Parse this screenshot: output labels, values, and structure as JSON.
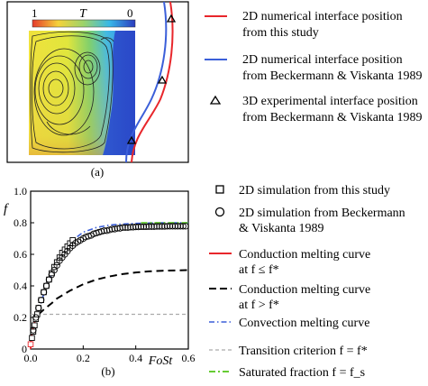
{
  "panel_a": {
    "label": "(a)",
    "colorbar": {
      "left_label": "1",
      "center_label": "T",
      "right_label": "0"
    },
    "legend": [
      {
        "text": [
          "2D numerical interface position",
          "from this study"
        ],
        "color": "#e8262b",
        "marker": "line"
      },
      {
        "text": [
          "2D numerical interface position",
          "from Beckermann & Viskanta 1989"
        ],
        "color": "#3b5fd9",
        "marker": "line"
      },
      {
        "text": [
          "3D  experimental interface position",
          "from Beckermann & Viskanta 1989"
        ],
        "color": "#000000",
        "marker": "triangle"
      }
    ]
  },
  "panel_b": {
    "label": "(b)",
    "legend": [
      {
        "text": [
          "2D simulation from this study"
        ],
        "marker": "square"
      },
      {
        "text": [
          "2D simulation from Beckermann",
          "& Viskanta 1989"
        ],
        "marker": "circle"
      },
      {
        "text": [
          "Conduction melting curve",
          "at  f ≤ f*"
        ],
        "marker": "red-line"
      },
      {
        "text": [
          "Conduction melting curve",
          "at  f > f*"
        ],
        "marker": "black-dash"
      },
      {
        "text": [
          "Convection melting curve"
        ],
        "marker": "blue-dashdot"
      },
      {
        "text": [
          "Transition criterion  f = f*"
        ],
        "marker": "gray-dash"
      },
      {
        "text": [
          "Saturated fraction  f = f_s"
        ],
        "marker": "green-dashdot"
      }
    ]
  },
  "chart_data": {
    "type": "line",
    "xlabel": "FoSt",
    "ylabel": "f",
    "xlim": [
      0,
      0.6
    ],
    "ylim": [
      0,
      1.0
    ],
    "xticks": [
      "0.0",
      "0.2",
      "0.4",
      "0.6"
    ],
    "yticks": [
      "0",
      "0.2",
      "0.4",
      "0.6",
      "0.8",
      "1.0"
    ],
    "grid": false,
    "transition_f": 0.22,
    "saturated_f": 0.8,
    "series": [
      {
        "name": "2D simulation from this study",
        "style": "square",
        "color": "#000000",
        "x": [
          0.0,
          0.005,
          0.01,
          0.015,
          0.02,
          0.025,
          0.03,
          0.04,
          0.05,
          0.06,
          0.07,
          0.08,
          0.09,
          0.1,
          0.11,
          0.12,
          0.13,
          0.14,
          0.15,
          0.16
        ],
        "y": [
          0.03,
          0.07,
          0.11,
          0.15,
          0.19,
          0.22,
          0.26,
          0.31,
          0.36,
          0.4,
          0.44,
          0.48,
          0.52,
          0.55,
          0.58,
          0.61,
          0.63,
          0.65,
          0.67,
          0.69
        ]
      },
      {
        "name": "2D simulation from Beckermann & Viskanta 1989",
        "style": "circle",
        "color": "#000000",
        "x": [
          0.01,
          0.02,
          0.03,
          0.04,
          0.05,
          0.06,
          0.07,
          0.08,
          0.09,
          0.1,
          0.11,
          0.12,
          0.13,
          0.14,
          0.15,
          0.16,
          0.17,
          0.18,
          0.19,
          0.2,
          0.21,
          0.22,
          0.23,
          0.24,
          0.25,
          0.26,
          0.27,
          0.28,
          0.29,
          0.3,
          0.31,
          0.32,
          0.33,
          0.34,
          0.35,
          0.36,
          0.37,
          0.38,
          0.39,
          0.4,
          0.41,
          0.42,
          0.43,
          0.44,
          0.45,
          0.46,
          0.47,
          0.48,
          0.49,
          0.5,
          0.51,
          0.52,
          0.53,
          0.54,
          0.55,
          0.56,
          0.57,
          0.58,
          0.59
        ],
        "y": [
          0.12,
          0.2,
          0.26,
          0.31,
          0.36,
          0.4,
          0.44,
          0.47,
          0.5,
          0.53,
          0.56,
          0.58,
          0.6,
          0.62,
          0.64,
          0.655,
          0.67,
          0.68,
          0.69,
          0.7,
          0.71,
          0.715,
          0.72,
          0.73,
          0.735,
          0.74,
          0.745,
          0.75,
          0.75,
          0.755,
          0.76,
          0.76,
          0.765,
          0.765,
          0.77,
          0.77,
          0.77,
          0.772,
          0.772,
          0.774,
          0.774,
          0.775,
          0.775,
          0.775,
          0.776,
          0.776,
          0.776,
          0.777,
          0.777,
          0.777,
          0.777,
          0.778,
          0.778,
          0.778,
          0.778,
          0.778,
          0.778,
          0.778,
          0.778
        ]
      },
      {
        "name": "Conduction melting curve at f ≤ f*",
        "style": "solid",
        "color": "#e8262b",
        "x": [
          0.0,
          0.002,
          0.005,
          0.01,
          0.015,
          0.02,
          0.025,
          0.03
        ],
        "y": [
          0.0,
          0.06,
          0.1,
          0.14,
          0.17,
          0.195,
          0.21,
          0.22
        ]
      },
      {
        "name": "Conduction melting curve at f > f*",
        "style": "dash",
        "color": "#000000",
        "x": [
          0.03,
          0.05,
          0.08,
          0.1,
          0.15,
          0.2,
          0.25,
          0.3,
          0.35,
          0.4,
          0.45,
          0.5,
          0.55,
          0.6
        ],
        "y": [
          0.22,
          0.25,
          0.29,
          0.32,
          0.37,
          0.41,
          0.44,
          0.46,
          0.475,
          0.485,
          0.492,
          0.496,
          0.498,
          0.5
        ]
      },
      {
        "name": "Convection melting curve",
        "style": "dashdot",
        "color": "#3b5fd9",
        "x": [
          0.03,
          0.05,
          0.07,
          0.1,
          0.13,
          0.16,
          0.2,
          0.25,
          0.3,
          0.35,
          0.4,
          0.45,
          0.5,
          0.55,
          0.6
        ],
        "y": [
          0.24,
          0.35,
          0.44,
          0.55,
          0.63,
          0.69,
          0.74,
          0.77,
          0.785,
          0.792,
          0.796,
          0.798,
          0.8,
          0.8,
          0.8
        ]
      },
      {
        "name": "Transition criterion f = f*",
        "style": "dash-gray",
        "color": "#aaaaaa",
        "x": [
          0.0,
          0.6
        ],
        "y": [
          0.22,
          0.22
        ]
      },
      {
        "name": "Saturated fraction f = f_s",
        "style": "dashdot-green",
        "color": "#66cc33",
        "x": [
          0.42,
          0.6
        ],
        "y": [
          0.8,
          0.8
        ]
      }
    ]
  }
}
